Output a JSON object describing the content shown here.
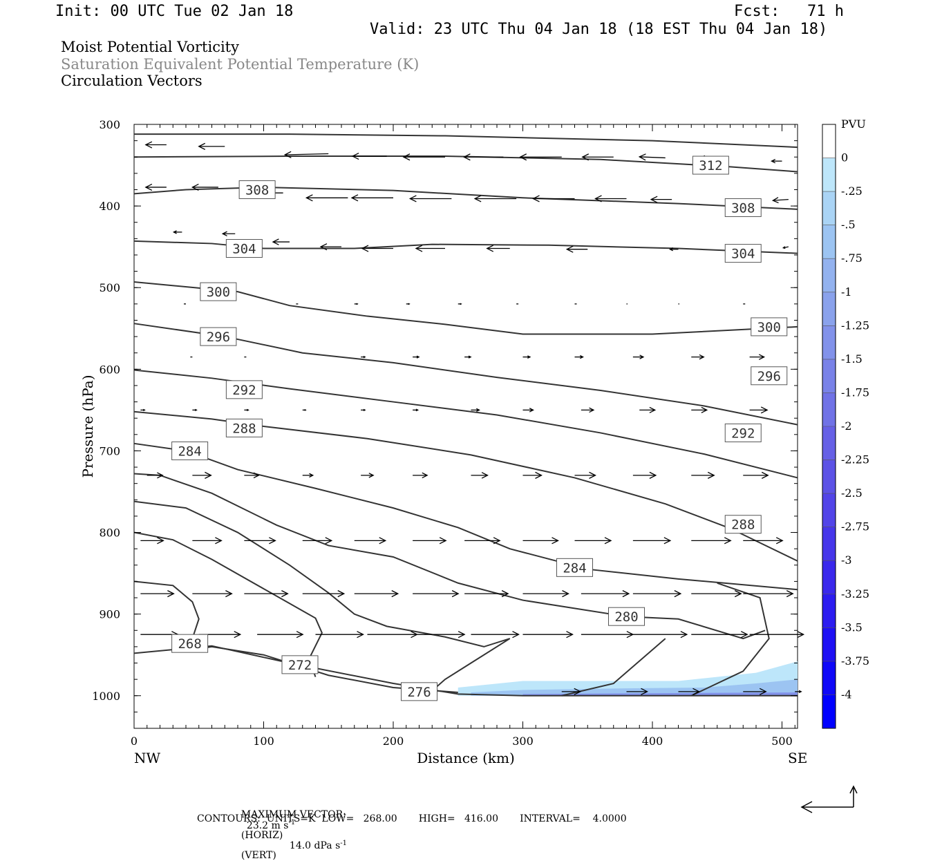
{
  "header": {
    "init": "Init: 00 UTC Tue 02 Jan 18",
    "fcst": "Fcst:   71 h",
    "valid": "Valid: 23 UTC Thu 04 Jan 18 (18 EST Thu 04 Jan 18)"
  },
  "legend": {
    "line1": "Moist Potential Vorticity",
    "line2": "Saturation Equivalent Potential Temperature (K)",
    "line3": "Circulation Vectors",
    "line2_color": "#888888"
  },
  "footer": {
    "max_vector_label": "MAXIMUM VECTOR:",
    "max_horiz": "23.2 m s",
    "horiz_unit": "(HORIZ)",
    "max_vert": "14.0 dPa s",
    "vert_unit": "(VERT)",
    "exponent": "-1",
    "contours": "CONTOURS:  UNITS=K  LOW=   268.00       HIGH=   416.00       INTERVAL=    4.0000"
  },
  "chart_data": {
    "type": "cross-section",
    "xlabel": "Distance (km)",
    "ylabel": "Pressure (hPa)",
    "x_range": [
      0,
      512
    ],
    "y_range": [
      300,
      1040
    ],
    "y_log": false,
    "x_ticks": [
      "0",
      "100",
      "200",
      "300",
      "400",
      "500"
    ],
    "x_tick_values": [
      0,
      100,
      200,
      300,
      400,
      500
    ],
    "y_ticks": [
      "300",
      "400",
      "500",
      "600",
      "700",
      "800",
      "900",
      "1000"
    ],
    "y_tick_values": [
      300,
      400,
      500,
      600,
      700,
      800,
      900,
      1000
    ],
    "x_end_labels": {
      "left": "NW",
      "right": "SE"
    },
    "colorbar": {
      "unit": "PVU",
      "labels": [
        "0",
        "-.25",
        "-.5",
        "-.75",
        "-1",
        "-1.25",
        "-1.5",
        "-1.75",
        "-2",
        "-2.25",
        "-2.5",
        "-2.75",
        "-3",
        "-3.25",
        "-3.5",
        "-3.75",
        "-4"
      ],
      "colors": [
        "#ffffff",
        "#bde6fa",
        "#aad4f5",
        "#9cc4f2",
        "#93b2ef",
        "#8aa2ec",
        "#8292ea",
        "#7982e8",
        "#7072e6",
        "#6660e6",
        "#5c52e6",
        "#5244e8",
        "#4636ea",
        "#3a28ec",
        "#2c1cf0",
        "#1e10f4",
        "#0f08f8",
        "#0000ff"
      ]
    },
    "theta_es_contours": [
      {
        "value": 312,
        "label": "312",
        "points": [
          [
            0,
            312
          ],
          [
            120,
            312
          ],
          [
            240,
            314
          ],
          [
            400,
            320
          ],
          [
            512,
            328
          ]
        ]
      },
      {
        "value": 312,
        "label": "",
        "points": [
          [
            0,
            340
          ],
          [
            120,
            339
          ],
          [
            240,
            339
          ],
          [
            360,
            343
          ],
          [
            460,
            352
          ],
          [
            512,
            358
          ]
        ]
      },
      {
        "value": 308,
        "label": "308",
        "points": [
          [
            0,
            385
          ],
          [
            40,
            380
          ],
          [
            100,
            377
          ],
          [
            200,
            381
          ],
          [
            300,
            390
          ],
          [
            420,
            397
          ],
          [
            512,
            404
          ]
        ]
      },
      {
        "value": 304,
        "label": "304",
        "points": [
          [
            0,
            443
          ],
          [
            60,
            446
          ],
          [
            100,
            452
          ],
          [
            170,
            452
          ],
          [
            230,
            447
          ],
          [
            320,
            448
          ],
          [
            420,
            452
          ],
          [
            512,
            458
          ]
        ]
      },
      {
        "value": 300,
        "label": "300",
        "points": [
          [
            0,
            493
          ],
          [
            80,
            505
          ],
          [
            120,
            522
          ],
          [
            180,
            535
          ],
          [
            240,
            545
          ],
          [
            300,
            557
          ],
          [
            400,
            557
          ],
          [
            512,
            548
          ]
        ]
      },
      {
        "value": 296,
        "label": "296",
        "points": [
          [
            0,
            544
          ],
          [
            70,
            560
          ],
          [
            130,
            580
          ],
          [
            200,
            592
          ],
          [
            280,
            610
          ],
          [
            360,
            626
          ],
          [
            440,
            645
          ],
          [
            512,
            668
          ]
        ]
      },
      {
        "value": 292,
        "label": "292",
        "points": [
          [
            0,
            601
          ],
          [
            60,
            611
          ],
          [
            120,
            624
          ],
          [
            200,
            640
          ],
          [
            280,
            656
          ],
          [
            360,
            678
          ],
          [
            440,
            704
          ],
          [
            512,
            733
          ]
        ]
      },
      {
        "value": 288,
        "label": "288",
        "points": [
          [
            0,
            652
          ],
          [
            60,
            661
          ],
          [
            100,
            670
          ],
          [
            180,
            685
          ],
          [
            260,
            705
          ],
          [
            340,
            733
          ],
          [
            410,
            765
          ],
          [
            460,
            795
          ],
          [
            512,
            835
          ]
        ]
      },
      {
        "value": 284,
        "label": "284",
        "points": [
          [
            0,
            691
          ],
          [
            40,
            700
          ],
          [
            80,
            723
          ],
          [
            140,
            746
          ],
          [
            200,
            770
          ],
          [
            250,
            794
          ],
          [
            290,
            820
          ],
          [
            350,
            845
          ],
          [
            420,
            857
          ],
          [
            512,
            870
          ]
        ]
      },
      {
        "value": 280,
        "label": "280",
        "points": [
          [
            0,
            728
          ],
          [
            20,
            730
          ],
          [
            60,
            752
          ],
          [
            110,
            791
          ],
          [
            150,
            816
          ],
          [
            200,
            830
          ],
          [
            250,
            862
          ],
          [
            300,
            883
          ],
          [
            380,
            903
          ],
          [
            420,
            906
          ],
          [
            470,
            930
          ],
          [
            487,
            920
          ]
        ]
      },
      {
        "value": 276,
        "label": "276",
        "points": [
          [
            0,
            762
          ],
          [
            40,
            770
          ],
          [
            80,
            800
          ],
          [
            120,
            840
          ],
          [
            150,
            874
          ],
          [
            170,
            900
          ],
          [
            195,
            915
          ],
          [
            240,
            928
          ],
          [
            270,
            940
          ],
          [
            290,
            930
          ],
          [
            260,
            960
          ],
          [
            240,
            980
          ],
          [
            230,
            994
          ]
        ]
      },
      {
        "value": 272,
        "label": "272",
        "points": [
          [
            0,
            800
          ],
          [
            30,
            809
          ],
          [
            60,
            833
          ],
          [
            110,
            878
          ],
          [
            140,
            905
          ],
          [
            145,
            923
          ],
          [
            135,
            955
          ],
          [
            140,
            977
          ]
        ]
      },
      {
        "value": 268,
        "label": "268",
        "points": [
          [
            0,
            860
          ],
          [
            30,
            865
          ],
          [
            45,
            885
          ],
          [
            50,
            906
          ],
          [
            45,
            930
          ],
          [
            40,
            945
          ],
          [
            60,
            940
          ],
          [
            100,
            950
          ],
          [
            150,
            975
          ],
          [
            200,
            990
          ],
          [
            250,
            996
          ]
        ]
      },
      {
        "value": 0,
        "label": "",
        "points": [
          [
            0,
            948
          ],
          [
            60,
            939
          ],
          [
            120,
            960
          ],
          [
            200,
            985
          ],
          [
            250,
            998
          ],
          [
            300,
            1000
          ],
          [
            400,
            1000
          ],
          [
            512,
            1000
          ]
        ]
      },
      {
        "value": 0,
        "label": "",
        "points": [
          [
            330,
            1000
          ],
          [
            370,
            985
          ],
          [
            410,
            930
          ]
        ]
      },
      {
        "value": 0,
        "label": "",
        "points": [
          [
            430,
            1000
          ],
          [
            470,
            970
          ],
          [
            490,
            930
          ],
          [
            483,
            880
          ],
          [
            450,
            862
          ]
        ]
      }
    ],
    "mpv_shading": [
      {
        "pvu": -0.25,
        "color": "#bde6fa",
        "polygon": [
          [
            250,
            990
          ],
          [
            300,
            982
          ],
          [
            420,
            982
          ],
          [
            480,
            972
          ],
          [
            512,
            958
          ],
          [
            512,
            1000
          ],
          [
            250,
            1000
          ]
        ]
      },
      {
        "pvu": -0.5,
        "color": "#9cc4f2",
        "polygon": [
          [
            260,
            996
          ],
          [
            300,
            993
          ],
          [
            380,
            991
          ],
          [
            440,
            990
          ],
          [
            480,
            985
          ],
          [
            512,
            980
          ],
          [
            512,
            1000
          ],
          [
            260,
            1000
          ]
        ]
      },
      {
        "pvu": -1.0,
        "color": "#8292ea",
        "polygon": [
          [
            300,
            998
          ],
          [
            400,
            997
          ],
          [
            512,
            996
          ],
          [
            512,
            1000
          ],
          [
            300,
            1000
          ]
        ]
      }
    ],
    "circulation_vectors": [
      {
        "x": 25,
        "p": 325,
        "u": -20,
        "w": 0
      },
      {
        "x": 70,
        "p": 327,
        "u": -25,
        "w": 0
      },
      {
        "x": 150,
        "p": 336,
        "u": -42,
        "w": 1
      },
      {
        "x": 195,
        "p": 339,
        "u": -33,
        "w": 0
      },
      {
        "x": 240,
        "p": 340,
        "u": -40,
        "w": 0
      },
      {
        "x": 285,
        "p": 340,
        "u": -38,
        "w": 0
      },
      {
        "x": 330,
        "p": 340,
        "u": -40,
        "w": 0
      },
      {
        "x": 370,
        "p": 340,
        "u": -30,
        "w": 0
      },
      {
        "x": 410,
        "p": 341,
        "u": -25,
        "w": -1
      },
      {
        "x": 450,
        "p": 343,
        "u": -18,
        "w": -1
      },
      {
        "x": 500,
        "p": 345,
        "u": -10,
        "w": 0
      },
      {
        "x": 25,
        "p": 377,
        "u": -20,
        "w": 0
      },
      {
        "x": 65,
        "p": 377,
        "u": -25,
        "w": 0
      },
      {
        "x": 115,
        "p": 384,
        "u": -25,
        "w": 0
      },
      {
        "x": 165,
        "p": 390,
        "u": -40,
        "w": 0
      },
      {
        "x": 200,
        "p": 390,
        "u": -40,
        "w": 0
      },
      {
        "x": 245,
        "p": 391,
        "u": -40,
        "w": 0
      },
      {
        "x": 295,
        "p": 391,
        "u": -40,
        "w": 0
      },
      {
        "x": 340,
        "p": 391,
        "u": -40,
        "w": 0
      },
      {
        "x": 380,
        "p": 391,
        "u": -30,
        "w": 0
      },
      {
        "x": 415,
        "p": 392,
        "u": -20,
        "w": 0
      },
      {
        "x": 505,
        "p": 392,
        "u": -15,
        "w": 1
      },
      {
        "x": 37,
        "p": 432,
        "u": -8,
        "w": 0
      },
      {
        "x": 78,
        "p": 434,
        "u": -12,
        "w": 0
      },
      {
        "x": 120,
        "p": 444,
        "u": -16,
        "w": 0
      },
      {
        "x": 160,
        "p": 450,
        "u": -20,
        "w": 0
      },
      {
        "x": 200,
        "p": 452,
        "u": -30,
        "w": 0
      },
      {
        "x": 240,
        "p": 452,
        "u": -28,
        "w": 0
      },
      {
        "x": 290,
        "p": 452,
        "u": -22,
        "w": 0
      },
      {
        "x": 350,
        "p": 453,
        "u": -20,
        "w": 0
      },
      {
        "x": 420,
        "p": 453,
        "u": -8,
        "w": 0
      },
      {
        "x": 505,
        "p": 450,
        "u": -5,
        "w": 1
      }
    ]
  },
  "colors": {
    "contour": "#333333",
    "axis": "#000000",
    "grey_text": "#888888"
  }
}
